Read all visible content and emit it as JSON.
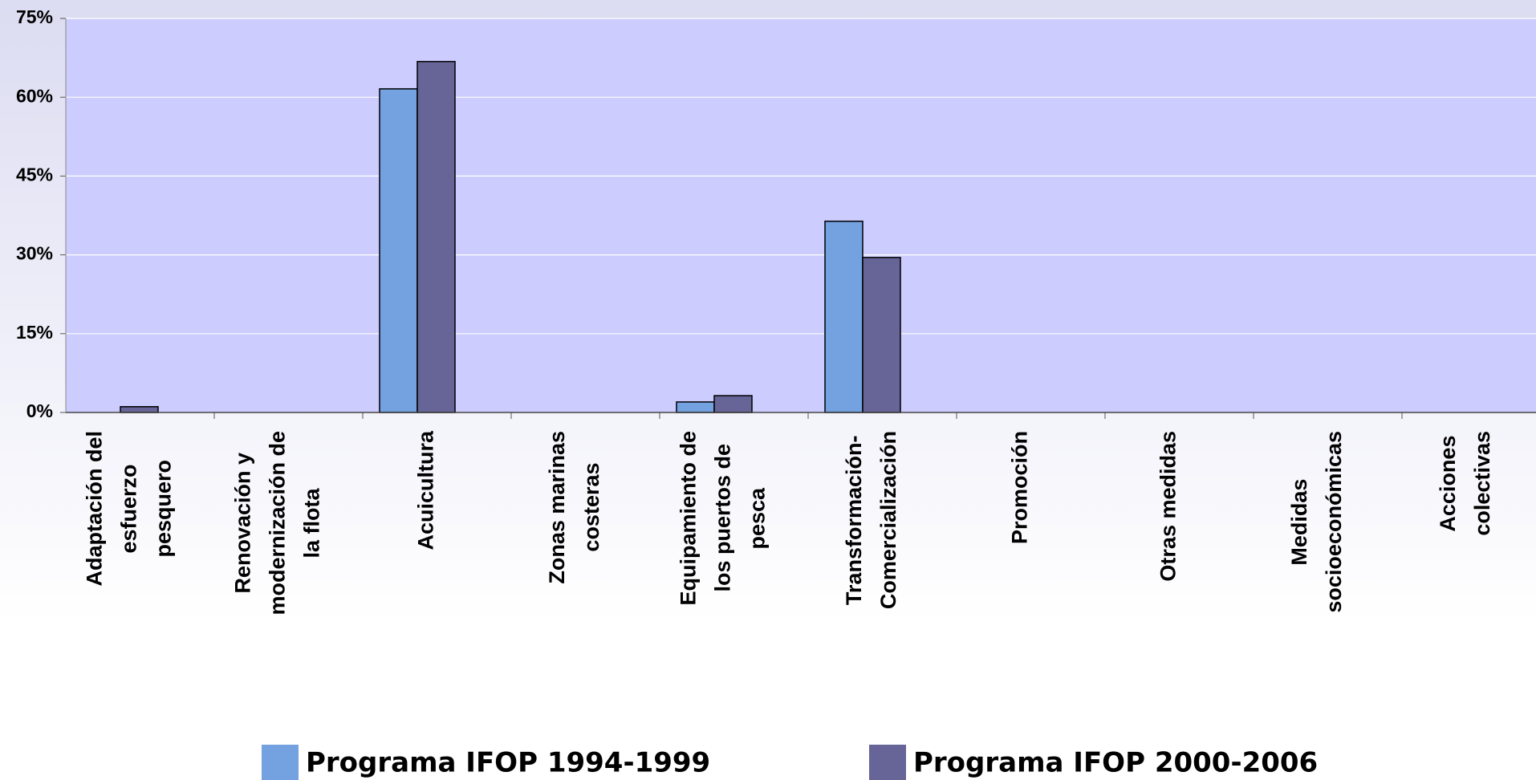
{
  "chart_data": {
    "type": "bar",
    "categories": [
      "Adaptación del\nesfuerzo\npesquero",
      "Renovación y\nmodernización de\nla flota",
      "Acuicultura",
      "Zonas marinas\ncosteras",
      "Equipamiento de\nlos puertos de\npesca",
      "Transformación-\nComercialización",
      "Promoción",
      "Otras medidas",
      "Medidas\nsocioeconómicas",
      "Acciones\ncolectivas"
    ],
    "series": [
      {
        "name": "Programa IFOP 1994-1999",
        "color": "#74a1e0",
        "values": [
          0,
          0,
          61.6,
          0,
          2,
          36.4,
          0,
          0,
          0,
          0
        ]
      },
      {
        "name": "Programa IFOP 2000-2006",
        "color": "#676497",
        "values": [
          1.1,
          0,
          66.8,
          0,
          3.2,
          29.5,
          0,
          0,
          0,
          0
        ]
      }
    ],
    "ylim": [
      0,
      75
    ],
    "yticks": [
      {
        "value": 0,
        "label": "0%"
      },
      {
        "value": 15,
        "label": "15%"
      },
      {
        "value": 30,
        "label": "30%"
      },
      {
        "value": 45,
        "label": "45%"
      },
      {
        "value": 60,
        "label": "60%"
      },
      {
        "value": 75,
        "label": "75%"
      }
    ],
    "grid": true
  }
}
